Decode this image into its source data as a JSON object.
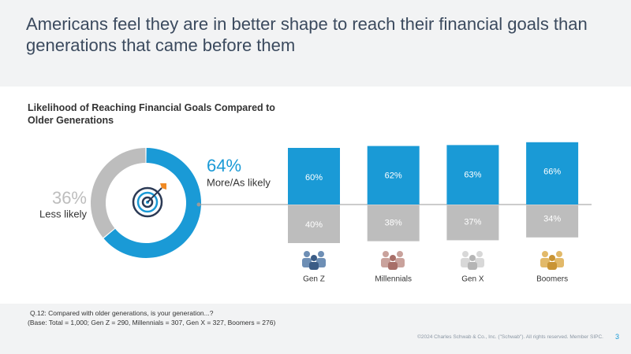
{
  "title": "Americans feel they are in better shape to reach their financial goals than generations that came before them",
  "chart_data": [
    {
      "type": "pie",
      "title": "Likelihood of Reaching Financial Goals Compared to Older Generations",
      "categories": [
        "More/As likely",
        "Less likely"
      ],
      "values": [
        64,
        36
      ],
      "value_labels": [
        "64%",
        "36%"
      ],
      "colors": [
        "#1a9ad6",
        "#bdbdbd"
      ]
    },
    {
      "type": "bar",
      "stacked": true,
      "categories": [
        "Gen Z",
        "Millennials",
        "Gen X",
        "Boomers"
      ],
      "series": [
        {
          "color": "#1a9ad6",
          "values": [
            60,
            62,
            63,
            66
          ],
          "value_labels": [
            "60%",
            "62%",
            "63%",
            "66%"
          ]
        },
        {
          "color": "#bdbdbd",
          "values": [
            40,
            38,
            37,
            34
          ],
          "value_labels": [
            "40%",
            "38%",
            "37%",
            "34%"
          ]
        }
      ]
    }
  ],
  "footnote": {
    "question": "Q.12:  Compared with older generations, is your generation...?",
    "base": "(Base: Total = 1,000; Gen Z = 290, Millennials = 307, Gen X = 327, Boomers = 276)"
  },
  "copyright": "©2024 Charles Schwab & Co., Inc. (\"Schwab\"). All rights reserved. Member SIPC.",
  "page_number": "3"
}
